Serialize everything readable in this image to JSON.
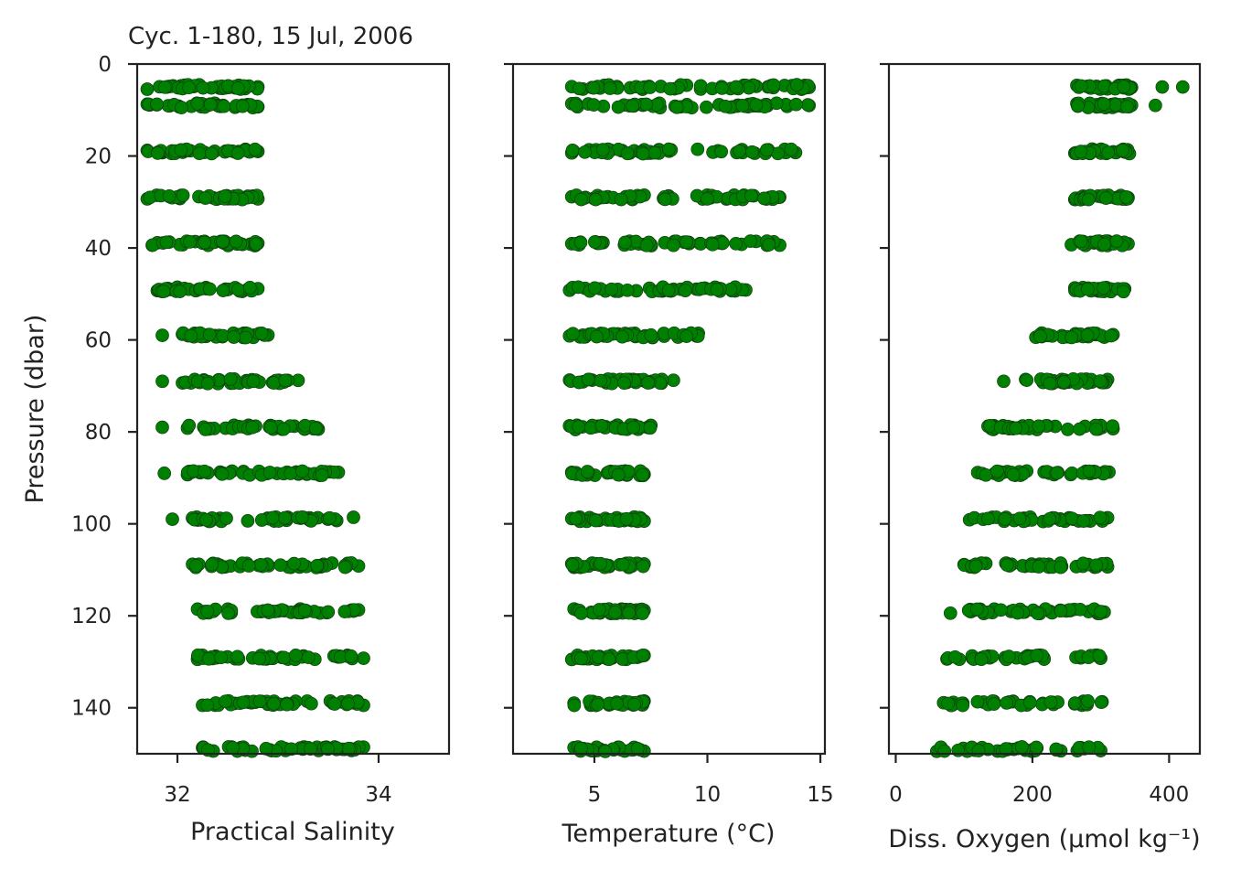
{
  "figure": {
    "title": "Cyc. 1-180, 15 Jul, 2006",
    "marker_color": "#008000",
    "marker_edge_color": "#0f3d0f"
  },
  "chart_data": [
    {
      "type": "scatter",
      "name": "salinity",
      "xlabel": "Practical Salinity",
      "ylabel": "Pressure (dbar)",
      "xlim": [
        31.6,
        34.7
      ],
      "ylim": [
        150,
        0
      ],
      "xticks": [
        "32",
        "34"
      ],
      "yticks": [
        "0",
        "20",
        "40",
        "60",
        "80",
        "100",
        "120",
        "140"
      ],
      "bands": [
        {
          "p": 5,
          "xmin": 31.7,
          "xmax": 32.8
        },
        {
          "p": 9,
          "xmin": 31.7,
          "xmax": 32.8
        },
        {
          "p": 19,
          "xmin": 31.7,
          "xmax": 32.8
        },
        {
          "p": 29,
          "xmin": 31.7,
          "xmax": 32.8
        },
        {
          "p": 39,
          "xmin": 31.75,
          "xmax": 32.8
        },
        {
          "p": 49,
          "xmin": 31.8,
          "xmax": 32.8
        },
        {
          "p": 59,
          "xmin": 32.05,
          "xmax": 32.9
        },
        {
          "p": 69,
          "xmin": 32.05,
          "xmax": 33.2
        },
        {
          "p": 79,
          "xmin": 32.1,
          "xmax": 33.4
        },
        {
          "p": 89,
          "xmin": 32.1,
          "xmax": 33.6
        },
        {
          "p": 99,
          "xmin": 32.15,
          "xmax": 33.75
        },
        {
          "p": 109,
          "xmin": 32.15,
          "xmax": 33.8
        },
        {
          "p": 119,
          "xmin": 32.2,
          "xmax": 33.8
        },
        {
          "p": 129,
          "xmin": 32.2,
          "xmax": 33.85
        },
        {
          "p": 139,
          "xmin": 32.25,
          "xmax": 33.85
        },
        {
          "p": 149,
          "xmin": 32.25,
          "xmax": 33.85
        }
      ],
      "outliers": [
        {
          "p": 59,
          "x": 31.85
        },
        {
          "p": 69,
          "x": 31.85
        },
        {
          "p": 79,
          "x": 31.85
        },
        {
          "p": 89,
          "x": 31.87
        },
        {
          "p": 99,
          "x": 31.95
        }
      ]
    },
    {
      "type": "scatter",
      "name": "temperature",
      "xlabel": "Temperature (°C)",
      "xlim": [
        1.4,
        15.2
      ],
      "ylim": [
        150,
        0
      ],
      "xticks": [
        "5",
        "10",
        "15"
      ],
      "bands": [
        {
          "p": 5,
          "xmin": 4.0,
          "xmax": 14.5
        },
        {
          "p": 9,
          "xmin": 4.0,
          "xmax": 14.5
        },
        {
          "p": 19,
          "xmin": 4.0,
          "xmax": 13.9
        },
        {
          "p": 29,
          "xmin": 4.0,
          "xmax": 13.2
        },
        {
          "p": 39,
          "xmin": 4.0,
          "xmax": 13.2
        },
        {
          "p": 49,
          "xmin": 3.9,
          "xmax": 11.7
        },
        {
          "p": 59,
          "xmin": 3.9,
          "xmax": 9.6
        },
        {
          "p": 69,
          "xmin": 3.9,
          "xmax": 8.5
        },
        {
          "p": 79,
          "xmin": 3.9,
          "xmax": 7.5
        },
        {
          "p": 89,
          "xmin": 4.0,
          "xmax": 7.2
        },
        {
          "p": 99,
          "xmin": 4.0,
          "xmax": 7.2
        },
        {
          "p": 109,
          "xmin": 4.0,
          "xmax": 7.2
        },
        {
          "p": 119,
          "xmin": 4.1,
          "xmax": 7.2
        },
        {
          "p": 129,
          "xmin": 4.0,
          "xmax": 7.2
        },
        {
          "p": 139,
          "xmin": 4.1,
          "xmax": 7.2
        },
        {
          "p": 149,
          "xmin": 4.1,
          "xmax": 7.2
        }
      ],
      "outliers": []
    },
    {
      "type": "scatter",
      "name": "oxygen",
      "xlabel": "Diss. Oxygen (μmol kg⁻¹)",
      "xlim": [
        -10,
        445
      ],
      "ylim": [
        150,
        0
      ],
      "xticks": [
        "0",
        "200",
        "400"
      ],
      "bands": [
        {
          "p": 5,
          "xmin": 265,
          "xmax": 345
        },
        {
          "p": 9,
          "xmin": 265,
          "xmax": 345
        },
        {
          "p": 19,
          "xmin": 262,
          "xmax": 342
        },
        {
          "p": 29,
          "xmin": 262,
          "xmax": 340
        },
        {
          "p": 39,
          "xmin": 257,
          "xmax": 340
        },
        {
          "p": 49,
          "xmin": 262,
          "xmax": 335
        },
        {
          "p": 59,
          "xmin": 205,
          "xmax": 318
        },
        {
          "p": 69,
          "xmin": 190,
          "xmax": 310
        },
        {
          "p": 79,
          "xmin": 135,
          "xmax": 318
        },
        {
          "p": 89,
          "xmin": 120,
          "xmax": 312
        },
        {
          "p": 99,
          "xmin": 108,
          "xmax": 310
        },
        {
          "p": 109,
          "xmin": 100,
          "xmax": 310
        },
        {
          "p": 119,
          "xmin": 80,
          "xmax": 305
        },
        {
          "p": 129,
          "xmin": 75,
          "xmax": 300
        },
        {
          "p": 139,
          "xmin": 70,
          "xmax": 302
        },
        {
          "p": 149,
          "xmin": 60,
          "xmax": 300
        }
      ],
      "gaps": [
        {
          "p": 129,
          "from": 235,
          "to": 262
        },
        {
          "p": 139,
          "from": 240,
          "to": 260
        },
        {
          "p": 149,
          "from": 210,
          "to": 232
        }
      ],
      "outliers": [
        {
          "p": 5,
          "x": 390
        },
        {
          "p": 5,
          "x": 420
        },
        {
          "p": 9,
          "x": 380
        },
        {
          "p": 69,
          "x": 158
        }
      ]
    }
  ]
}
